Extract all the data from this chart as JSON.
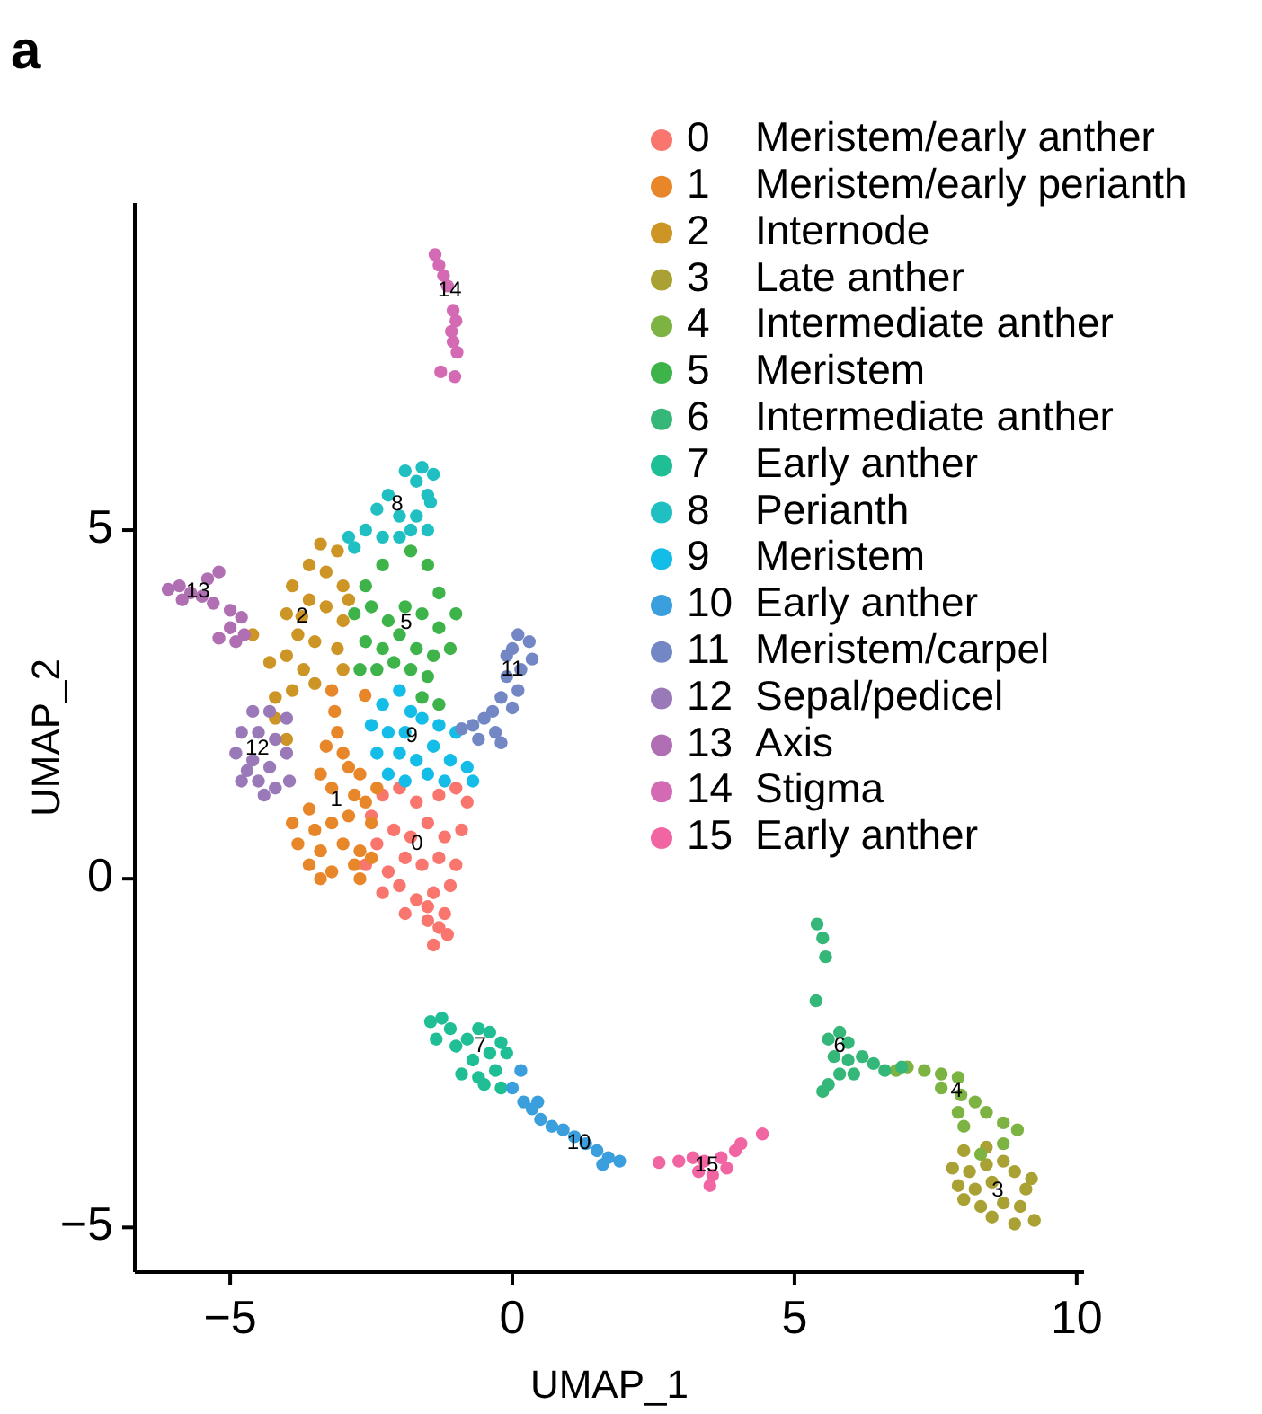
{
  "chart_data": {
    "type": "scatter",
    "xlabel": "UMAP_1",
    "ylabel": "UMAP_2",
    "xlim": [
      -6.69,
      10.13
    ],
    "ylim": [
      -5.64,
      9.69
    ],
    "xticks": [
      -5,
      0,
      5,
      10
    ],
    "yticks": [
      -5,
      0,
      5
    ],
    "grid": false,
    "legend": "top right",
    "marker": "circle",
    "annotations": [
      "a",
      {
        "text": "0",
        "x": -1.69,
        "y": 0.49
      },
      {
        "text": "1",
        "x": -3.12,
        "y": 1.13
      },
      {
        "text": "2",
        "x": -3.73,
        "y": 3.76
      },
      {
        "text": "3",
        "x": 8.6,
        "y": -4.48
      },
      {
        "text": "4",
        "x": 7.87,
        "y": -3.04
      },
      {
        "text": "5",
        "x": -1.88,
        "y": 3.66
      },
      {
        "text": "6",
        "x": 5.8,
        "y": -2.4
      },
      {
        "text": "7",
        "x": -0.57,
        "y": -2.4
      },
      {
        "text": "8",
        "x": -2.04,
        "y": 5.36
      },
      {
        "text": "9",
        "x": -1.78,
        "y": 2.04
      },
      {
        "text": "10",
        "x": 1.18,
        "y": -3.79
      },
      {
        "text": "11",
        "x": 0.0,
        "y": 3.0
      },
      {
        "text": "12",
        "x": -4.52,
        "y": 1.86
      },
      {
        "text": "13",
        "x": -5.57,
        "y": 4.12
      },
      {
        "text": "14",
        "x": -1.11,
        "y": 8.43
      },
      {
        "text": "15",
        "x": 3.44,
        "y": -4.12
      }
    ],
    "series": [
      {
        "name": "0 Meristem/early anther",
        "color": "#f8766d",
        "x": [
          -2.5,
          -2.3,
          -2.0,
          -1.7,
          -1.3,
          -1.0,
          -0.8,
          -2.4,
          -2.1,
          -1.8,
          -1.5,
          -1.2,
          -0.9,
          -2.6,
          -2.2,
          -1.9,
          -1.6,
          -1.3,
          -1.0,
          -2.3,
          -2.0,
          -1.7,
          -1.4,
          -1.1,
          -1.9,
          -1.5,
          -1.2,
          -1.15,
          -1.3,
          -1.5,
          -1.4
        ],
        "values": [
          0.9,
          1.2,
          1.3,
          1.1,
          1.2,
          1.3,
          1.1,
          0.5,
          0.7,
          0.6,
          0.8,
          0.6,
          0.7,
          0.2,
          0.1,
          0.3,
          0.2,
          0.3,
          0.2,
          -0.2,
          -0.1,
          -0.3,
          -0.2,
          -0.1,
          -0.5,
          -0.6,
          -0.5,
          -0.8,
          -0.7,
          -0.4,
          -0.95
        ]
      },
      {
        "name": "1 Meristem/early perianth",
        "color": "#e8862a",
        "x": [
          -3.2,
          -3.15,
          -3.1,
          -3.3,
          -3.0,
          -2.9,
          -2.7,
          -3.4,
          -3.2,
          -2.8,
          -2.6,
          -3.6,
          -3.9,
          -3.5,
          -3.2,
          -2.9,
          -2.5,
          -3.8,
          -3.4,
          -3.0,
          -2.7,
          -3.6,
          -3.2,
          -2.8,
          -2.5,
          -3.4,
          -2.7,
          -2.4,
          -2.61
        ],
        "values": [
          2.7,
          2.4,
          2.1,
          1.9,
          1.8,
          1.6,
          1.5,
          1.5,
          1.3,
          1.2,
          1.1,
          1.0,
          0.8,
          0.7,
          0.8,
          0.9,
          0.8,
          0.5,
          0.4,
          0.5,
          0.4,
          0.2,
          0.1,
          0.2,
          0.3,
          0.0,
          0.0,
          1.3,
          2.63
        ]
      },
      {
        "name": "2 Internode",
        "color": "#cc9526",
        "x": [
          -3.4,
          -3.1,
          -3.6,
          -3.3,
          -3.0,
          -3.9,
          -3.6,
          -3.3,
          -3.0,
          -2.9,
          -4.0,
          -3.8,
          -3.5,
          -4.0,
          -3.7,
          -4.3,
          -4.6,
          -3.9,
          -4.2,
          -3.5,
          -3.1,
          -3.0,
          -4.2,
          -4.0,
          -3.73
        ],
        "values": [
          4.8,
          4.7,
          4.5,
          4.4,
          4.2,
          4.2,
          4.0,
          3.9,
          3.7,
          4.0,
          3.8,
          3.5,
          3.4,
          3.2,
          3.0,
          3.1,
          3.5,
          2.7,
          2.6,
          2.8,
          3.3,
          3.0,
          2.3,
          2.0,
          3.76
        ]
      },
      {
        "name": "3 Late anther",
        "color": "#a9a133",
        "x": [
          8.0,
          8.4,
          7.8,
          8.1,
          8.4,
          8.7,
          8.9,
          7.9,
          8.2,
          8.5,
          9.1,
          9.2,
          8.0,
          8.3,
          8.7,
          9.0,
          8.5,
          8.9,
          9.25
        ],
        "values": [
          -3.9,
          -3.85,
          -4.15,
          -4.2,
          -4.1,
          -4.05,
          -4.2,
          -4.4,
          -4.45,
          -4.35,
          -4.45,
          -4.3,
          -4.6,
          -4.7,
          -4.65,
          -4.7,
          -4.85,
          -4.95,
          -4.9
        ]
      },
      {
        "name": "4 Intermediate anther",
        "color": "#7cb342",
        "x": [
          6.8,
          7.0,
          7.3,
          7.6,
          7.9,
          7.6,
          7.95,
          8.2,
          8.4,
          7.9,
          8.0,
          8.7,
          8.95,
          8.7,
          8.3
        ],
        "values": [
          -2.75,
          -2.7,
          -2.75,
          -2.8,
          -2.85,
          -3.0,
          -3.1,
          -3.2,
          -3.35,
          -3.35,
          -3.55,
          -3.5,
          -3.6,
          -3.8,
          -3.95
        ]
      },
      {
        "name": "5 Meristem",
        "color": "#3db34a",
        "x": [
          -2.6,
          -2.3,
          -1.5,
          -1.3,
          -2.8,
          -2.5,
          -2.2,
          -1.9,
          -1.6,
          -1.3,
          -1.1,
          -2.6,
          -2.3,
          -2.0,
          -1.7,
          -1.4,
          -2.7,
          -2.4,
          -2.1,
          -1.8,
          -1.5,
          -1.6,
          -1.3,
          -1.0,
          -1.8
        ],
        "values": [
          4.2,
          4.5,
          4.5,
          4.1,
          3.8,
          3.9,
          3.7,
          3.9,
          3.8,
          3.6,
          3.3,
          3.4,
          3.3,
          3.5,
          3.3,
          3.2,
          3.0,
          3.0,
          3.1,
          3.0,
          2.9,
          2.6,
          2.5,
          3.8,
          4.7
        ]
      },
      {
        "name": "6 Intermediate anther",
        "color": "#35b779",
        "x": [
          5.4,
          5.5,
          5.55,
          5.38,
          5.6,
          5.8,
          5.95,
          5.7,
          5.95,
          6.2,
          6.4,
          6.6,
          6.9,
          5.8,
          5.6,
          5.5,
          6.05
        ],
        "values": [
          -0.65,
          -0.85,
          -1.12,
          -1.75,
          -2.3,
          -2.2,
          -2.35,
          -2.55,
          -2.6,
          -2.55,
          -2.65,
          -2.75,
          -2.7,
          -2.8,
          -2.95,
          -3.05,
          -2.8
        ]
      },
      {
        "name": "7 Early anther",
        "color": "#20be95",
        "x": [
          -1.45,
          -1.25,
          -1.1,
          -1.35,
          -1.0,
          -0.8,
          -0.6,
          -0.4,
          -0.2,
          -0.1,
          -0.4,
          -0.7,
          -0.9,
          -0.6,
          -0.3,
          -0.2,
          -0.5
        ],
        "values": [
          -2.05,
          -2.0,
          -2.15,
          -2.3,
          -2.4,
          -2.3,
          -2.15,
          -2.2,
          -2.35,
          -2.5,
          -2.5,
          -2.6,
          -2.8,
          -2.85,
          -2.75,
          -3.0,
          -2.95
        ]
      },
      {
        "name": "8 Perianth",
        "color": "#1fbfc2",
        "x": [
          -1.9,
          -1.6,
          -1.4,
          -1.7,
          -1.5,
          -2.2,
          -2.4,
          -2.0,
          -1.7,
          -1.45,
          -1.5,
          -2.6,
          -2.9,
          -2.8,
          -2.3,
          -2.0,
          -1.8
        ],
        "values": [
          5.85,
          5.9,
          5.8,
          5.7,
          5.5,
          5.5,
          5.3,
          5.2,
          5.2,
          5.4,
          5.0,
          5.0,
          4.9,
          4.75,
          4.9,
          4.9,
          5.0
        ]
      },
      {
        "name": "9 Meristem",
        "color": "#13bde8",
        "x": [
          -2.3,
          -2.0,
          -1.8,
          -2.5,
          -2.2,
          -1.9,
          -1.6,
          -1.3,
          -1.0,
          -2.4,
          -2.0,
          -1.7,
          -1.4,
          -1.1,
          -0.8,
          -2.2,
          -1.9,
          -1.5,
          -1.2,
          -0.7
        ],
        "values": [
          2.5,
          2.7,
          2.4,
          2.2,
          2.1,
          2.1,
          2.3,
          2.2,
          2.1,
          1.8,
          1.8,
          1.7,
          1.9,
          1.7,
          1.6,
          1.5,
          1.4,
          1.5,
          1.4,
          1.4
        ]
      },
      {
        "name": "10 Early anther",
        "color": "#3a9fdc",
        "x": [
          0.15,
          0.0,
          0.2,
          0.35,
          0.5,
          0.7,
          0.9,
          1.1,
          1.3,
          1.5,
          1.7,
          1.9,
          1.6,
          0.45
        ],
        "values": [
          -2.75,
          -3.0,
          -3.2,
          -3.3,
          -3.45,
          -3.55,
          -3.6,
          -3.7,
          -3.8,
          -3.9,
          -4.0,
          -4.05,
          -4.1,
          -3.2
        ]
      },
      {
        "name": "11 Meristem/carpel",
        "color": "#7387c5",
        "x": [
          0.1,
          0.3,
          0.0,
          0.35,
          0.15,
          -0.1,
          0.1,
          -0.2,
          0.0,
          -0.35,
          -0.5,
          -0.7,
          -0.3,
          -0.6,
          -0.9,
          -0.2,
          -0.1
        ],
        "values": [
          3.5,
          3.4,
          3.3,
          3.15,
          3.0,
          2.9,
          2.7,
          2.6,
          2.45,
          2.4,
          2.3,
          2.2,
          2.1,
          2.0,
          2.15,
          1.95,
          3.2
        ]
      },
      {
        "name": "12 Sepal/pedicel",
        "color": "#9a79b9",
        "x": [
          -4.6,
          -4.3,
          -4.0,
          -4.8,
          -4.5,
          -4.2,
          -4.9,
          -4.6,
          -4.3,
          -4.0,
          -4.8,
          -4.5,
          -4.2,
          -3.95,
          -4.4,
          -4.7
        ],
        "values": [
          2.4,
          2.4,
          2.3,
          2.1,
          2.1,
          2.0,
          1.8,
          1.7,
          1.6,
          1.8,
          1.4,
          1.4,
          1.3,
          1.4,
          1.2,
          1.55
        ]
      },
      {
        "name": "13 Axis",
        "color": "#b06fb2",
        "x": [
          -6.1,
          -5.9,
          -5.7,
          -5.5,
          -5.4,
          -5.2,
          -5.3,
          -5.0,
          -4.8,
          -5.0,
          -4.75,
          -4.9,
          -5.2,
          -5.85
        ],
        "values": [
          4.15,
          4.2,
          4.1,
          4.05,
          4.3,
          4.4,
          3.95,
          3.85,
          3.75,
          3.6,
          3.5,
          3.4,
          3.45,
          4.0
        ]
      },
      {
        "name": "14 Stigma",
        "color": "#d56ab4",
        "x": [
          -1.37,
          -1.3,
          -1.22,
          -1.15,
          -1.05,
          -1.0,
          -1.08,
          -1.05,
          -0.98,
          -1.27,
          -1.02
        ],
        "values": [
          8.95,
          8.8,
          8.65,
          8.5,
          8.15,
          8.0,
          7.85,
          7.7,
          7.55,
          7.27,
          7.2
        ]
      },
      {
        "name": "15 Early anther",
        "color": "#f165a3",
        "x": [
          2.6,
          2.95,
          3.2,
          3.4,
          3.7,
          3.95,
          4.05,
          3.3,
          3.55,
          3.5,
          3.8,
          4.43
        ],
        "values": [
          -4.07,
          -4.05,
          -4.0,
          -4.05,
          -4.0,
          -3.9,
          -3.8,
          -4.2,
          -4.25,
          -4.4,
          -4.15,
          -3.66
        ]
      }
    ]
  }
}
